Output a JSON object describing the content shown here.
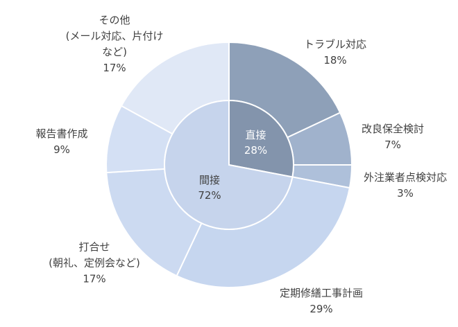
{
  "chart_data": {
    "type": "pie",
    "inner_ring": [
      {
        "label": "直接",
        "value": 28,
        "value_label": "28%",
        "color": "#8394ac"
      },
      {
        "label": "間接",
        "value": 72,
        "value_label": "72%",
        "color": "#c6d4ec"
      }
    ],
    "outer_ring": [
      {
        "label_lines": [
          "トラブル対応"
        ],
        "value": 18,
        "value_label": "18%",
        "color": "#8ea0b8"
      },
      {
        "label_lines": [
          "改良保全検討"
        ],
        "value": 7,
        "value_label": "7%",
        "color": "#a0b2cc"
      },
      {
        "label_lines": [
          "外注業者点検対応"
        ],
        "value": 3,
        "value_label": "3%",
        "color": "#aec0da"
      },
      {
        "label_lines": [
          "定期修繕工事計画"
        ],
        "value": 29,
        "value_label": "29%",
        "color": "#c6d6ef"
      },
      {
        "label_lines": [
          "打合せ",
          "(朝礼、定例会など)"
        ],
        "value": 17,
        "value_label": "17%",
        "color": "#ccdaf1"
      },
      {
        "label_lines": [
          "報告書作成"
        ],
        "value": 9,
        "value_label": "9%",
        "color": "#d4e0f4"
      },
      {
        "label_lines": [
          "その他",
          "(メール対応、片付け",
          "など)"
        ],
        "value": 17,
        "value_label": "17%",
        "color": "#e0e8f6"
      }
    ]
  }
}
